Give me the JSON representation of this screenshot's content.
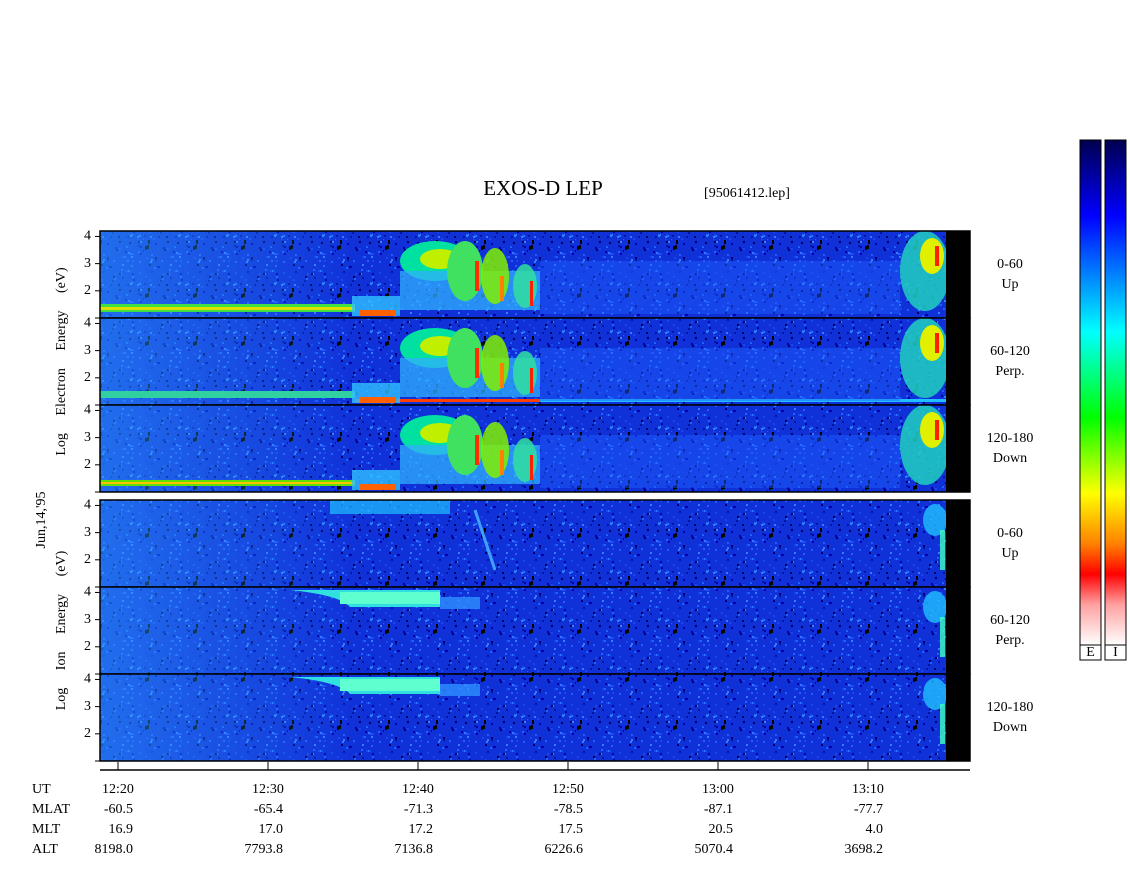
{
  "chart_data": {
    "type": "spectrogram",
    "title": "EXOS-D LEP",
    "file_label": "[95061412.lep]",
    "date_label": "Jun,14,'95",
    "xlim": [
      "12:18:48",
      "13:16:48"
    ],
    "xticks": [
      "12:20",
      "12:30",
      "12:40",
      "12:50",
      "13:00",
      "13:10"
    ],
    "ylim": [
      1,
      4.2
    ],
    "yticks": [
      2,
      3,
      4
    ],
    "groups": [
      {
        "label": "Log Electron Energy (eV)",
        "colorbar_label": "E",
        "panels": [
          {
            "range": "0-60",
            "direction": "Up"
          },
          {
            "range": "60-120",
            "direction": "Perp."
          },
          {
            "range": "120-180",
            "direction": "Down"
          }
        ]
      },
      {
        "label": "Log Ion Energy (eV)",
        "colorbar_label": "I",
        "panels": [
          {
            "range": "0-60",
            "direction": "Up"
          },
          {
            "range": "60-120",
            "direction": "Perp."
          },
          {
            "range": "120-180",
            "direction": "Down"
          }
        ]
      }
    ],
    "ephemeris": {
      "x_label": "UT",
      "rows": [
        {
          "name": "MLAT",
          "values": [
            "-60.5",
            "-65.4",
            "-71.3",
            "-78.5",
            "-87.1",
            "-77.7"
          ]
        },
        {
          "name": "MLT",
          "values": [
            "16.9",
            "17.0",
            "17.2",
            "17.5",
            "20.5",
            "4.0"
          ]
        },
        {
          "name": "ALT",
          "values": [
            "8198.0",
            "7793.8",
            "7136.8",
            "6226.6",
            "5070.4",
            "3698.2"
          ]
        }
      ]
    }
  }
}
